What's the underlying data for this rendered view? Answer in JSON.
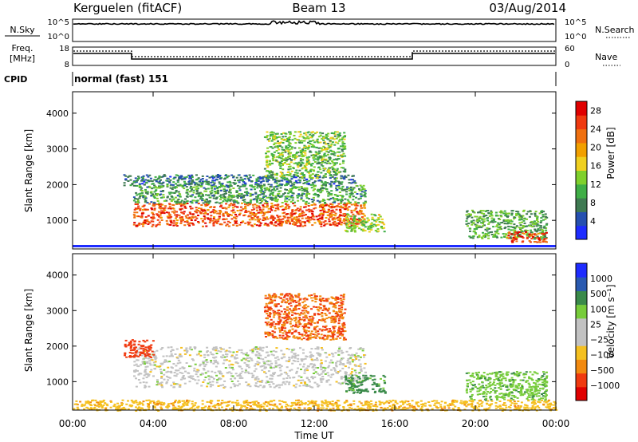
{
  "header": {
    "station": "Kerguelen (fitACF)",
    "beam": "Beam 13",
    "date": "03/Aug/2014"
  },
  "summary_panels": {
    "noise": {
      "left_label": "N.Sky",
      "left_ticks": [
        "10^5",
        "10^0"
      ],
      "right_label": "N.Search",
      "right_ticks": [
        "10^5",
        "10^0"
      ]
    },
    "frequency": {
      "left_label_line1": "Freq.",
      "left_label_line2": "[MHz]",
      "left_ticks": [
        "18",
        "8"
      ],
      "right_label": "Nave",
      "right_ticks": [
        "60",
        "0"
      ]
    },
    "cpid": {
      "label": "CPID",
      "text": "normal (fast) 151"
    }
  },
  "colors": {
    "power_scale": [
      "#1e2cff",
      "#2650b0",
      "#3f7a52",
      "#3fae46",
      "#7fd02c",
      "#f0d020",
      "#f2a000",
      "#f07010",
      "#f03a10",
      "#e00000"
    ],
    "velocity_scale": [
      "#e00000",
      "#f03a10",
      "#f28a10",
      "#f5c020",
      "#c2c2c2",
      "#c2c2c2",
      "#77cc3a",
      "#3a8a4a",
      "#2a5ab0",
      "#1e2cff"
    ],
    "gray": "#c0c0c0"
  },
  "chart_data": [
    {
      "type": "heatmap",
      "name": "power",
      "xlabel": "",
      "ylabel": "Slant Range [km]",
      "xlim": [
        0,
        24
      ],
      "ylim": [
        200,
        4600
      ],
      "yticks": [
        "1000",
        "2000",
        "3000",
        "4000"
      ],
      "xticks": [
        "00:00",
        "04:00",
        "08:00",
        "12:00",
        "16:00",
        "20:00",
        "00:00"
      ],
      "colorbar": {
        "label": "Power [dB]",
        "ticks": [
          "4",
          "8",
          "12",
          "16",
          "20",
          "24",
          "28"
        ],
        "range": [
          0,
          30
        ]
      },
      "scatter_regions": [
        {
          "t": [
            3.0,
            14.5
          ],
          "range": [
            850,
            1500
          ],
          "level": 25
        },
        {
          "t": [
            3.0,
            14.5
          ],
          "range": [
            1500,
            2000
          ],
          "level": 9
        },
        {
          "t": [
            2.5,
            14.0
          ],
          "range": [
            2000,
            2300
          ],
          "level": 6
        },
        {
          "t": [
            9.5,
            13.5
          ],
          "range": [
            2200,
            3500
          ],
          "level": 12
        },
        {
          "t": [
            13.5,
            15.5
          ],
          "range": [
            700,
            1200
          ],
          "level": 14
        },
        {
          "t": [
            19.5,
            23.5
          ],
          "range": [
            500,
            1300
          ],
          "level": 10
        },
        {
          "t": [
            21.5,
            23.5
          ],
          "range": [
            400,
            700
          ],
          "level": 26
        }
      ]
    },
    {
      "type": "heatmap",
      "name": "velocity",
      "xlabel": "Time UT",
      "ylabel": "Slant Range [km]",
      "xlim": [
        0,
        24
      ],
      "ylim": [
        200,
        4600
      ],
      "yticks": [
        "1000",
        "2000",
        "3000",
        "4000"
      ],
      "xticks": [
        "00:00",
        "04:00",
        "08:00",
        "12:00",
        "16:00",
        "20:00",
        "00:00"
      ],
      "colorbar": {
        "label": "Velocity [m s⁻¹]",
        "ticks": [
          "1000",
          "500",
          "100",
          "25",
          "−25",
          "−100",
          "−500",
          "−1000"
        ]
      },
      "scatter_regions": [
        {
          "t": [
            3.0,
            14.5
          ],
          "range": [
            850,
            2000
          ],
          "value": 0
        },
        {
          "t": [
            2.5,
            4.0
          ],
          "range": [
            1700,
            2200
          ],
          "value": -400
        },
        {
          "t": [
            9.5,
            13.5
          ],
          "range": [
            2200,
            3500
          ],
          "value": -300
        },
        {
          "t": [
            13.5,
            15.5
          ],
          "range": [
            700,
            1200
          ],
          "value": 120
        },
        {
          "t": [
            19.5,
            23.5
          ],
          "range": [
            500,
            1300
          ],
          "value": 80
        },
        {
          "t": [
            0.0,
            24.0
          ],
          "range": [
            200,
            500
          ],
          "value": -80
        }
      ]
    }
  ]
}
